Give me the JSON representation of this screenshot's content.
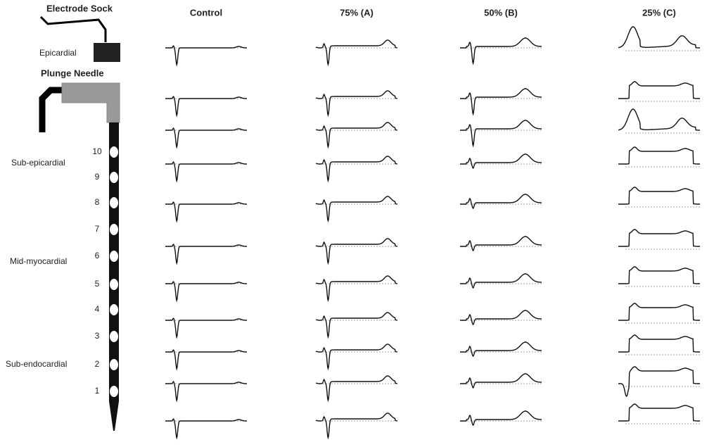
{
  "header": {
    "electrode_sock": "Electrode Sock",
    "epicardial": "Epicardial",
    "plunge_needle": "Plunge Needle"
  },
  "regions": [
    "Sub-epicardial",
    "Mid-myocardial",
    "Sub-endocardial"
  ],
  "electrodes": [
    "10",
    "9",
    "8",
    "7",
    "6",
    "5",
    "4",
    "3",
    "2",
    "1"
  ],
  "columns": [
    "Control",
    "75% (A)",
    "50% (B)",
    "25% (C)"
  ]
}
